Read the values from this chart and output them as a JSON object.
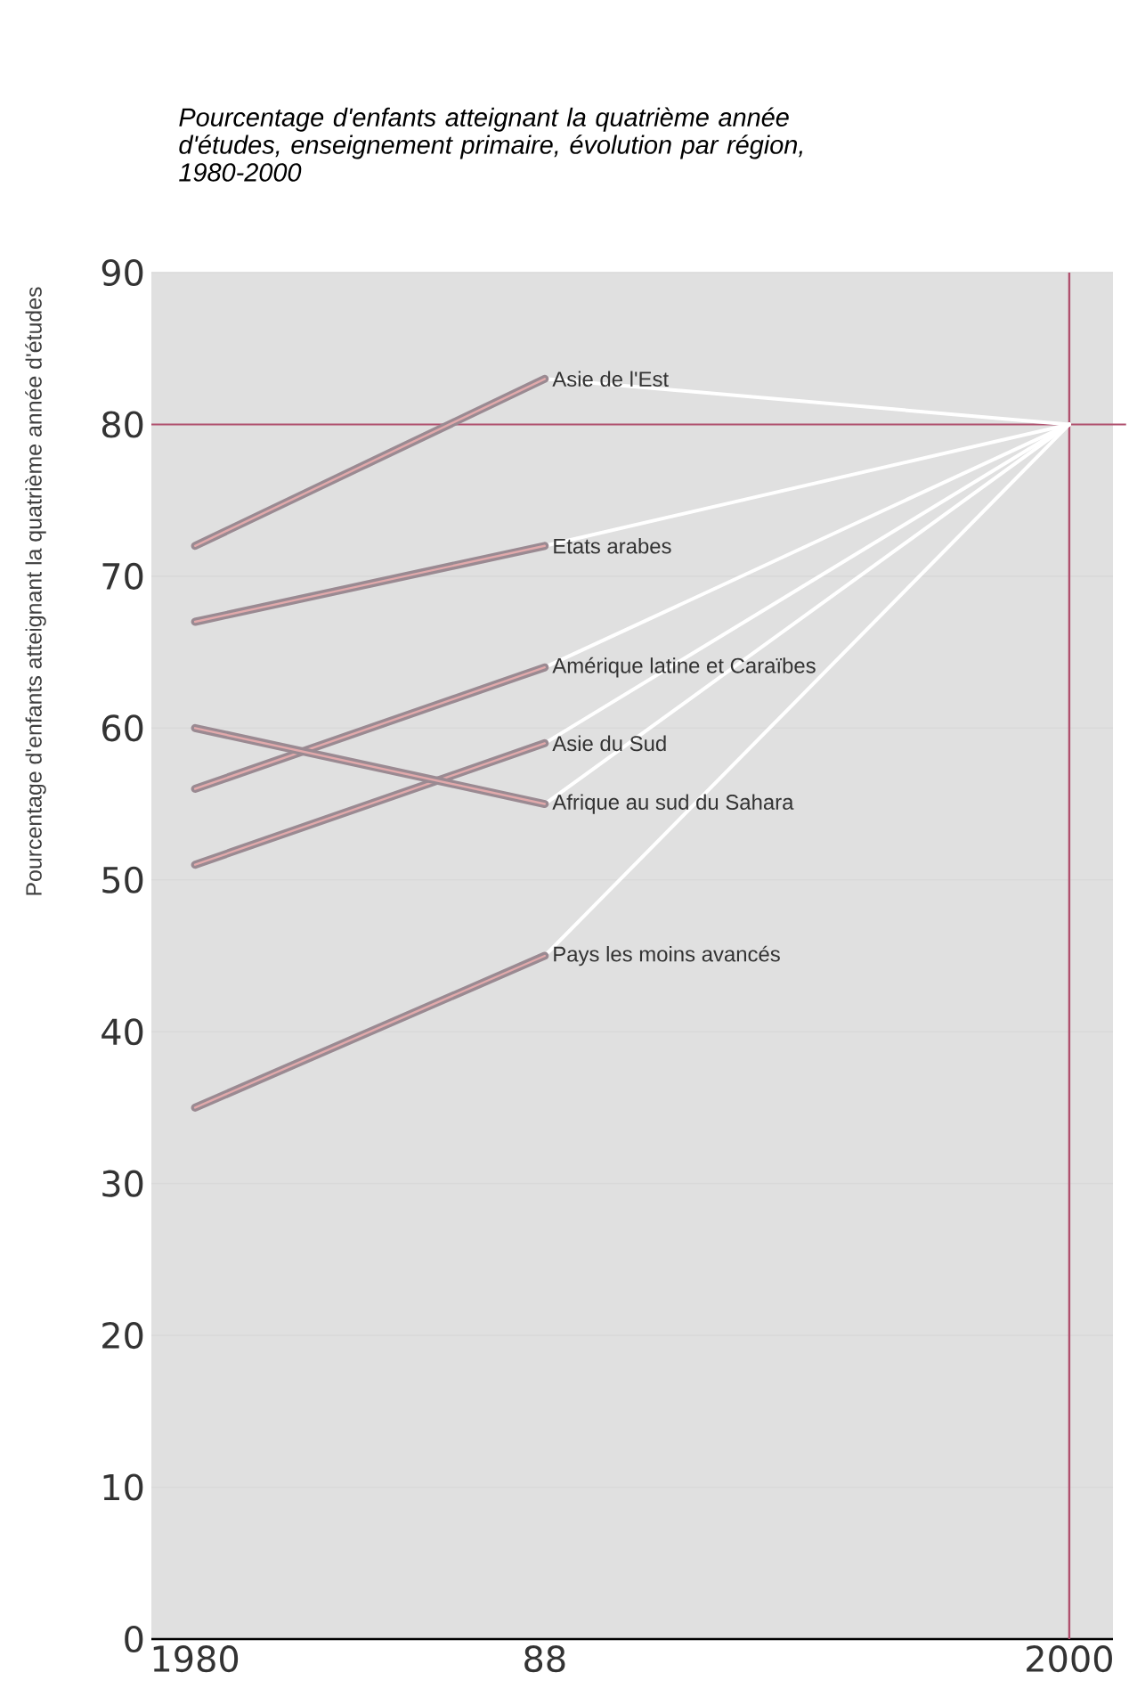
{
  "chart_data": {
    "type": "line",
    "title": "Pourcentage d'enfants atteignant la quatrième année d'études, enseignement primaire, évolution par région, 1980-2000",
    "ylabel": "Pourcentage d'enfants atteignant la quatrième année d'études",
    "x": [
      1980,
      1988,
      2000
    ],
    "xlim": [
      1979,
      2001
    ],
    "xticks": [
      1980,
      {
        "value": 1988,
        "label": "88"
      },
      2000
    ],
    "ylim": [
      0,
      90
    ],
    "yticks": [
      0,
      10,
      20,
      30,
      40,
      50,
      60,
      70,
      80,
      90
    ],
    "grid": "y",
    "series": [
      {
        "color": "#ffffff",
        "values": [
          null,
          83,
          80
        ]
      },
      {
        "color": "#ffffff",
        "values": [
          null,
          72,
          80
        ]
      },
      {
        "color": "#ffffff",
        "values": [
          null,
          64,
          80
        ]
      },
      {
        "color": "#ffffff",
        "values": [
          null,
          59,
          80
        ]
      },
      {
        "color": "#ffffff",
        "values": [
          null,
          55,
          80
        ]
      },
      {
        "color": "#ffffff",
        "values": [
          null,
          45,
          80
        ]
      },
      {
        "name": "Asie de l'Est",
        "color": "#9a8a92",
        "values": [
          72,
          83,
          null
        ]
      },
      {
        "name": "Etats arabes",
        "color": "#9a8a92",
        "values": [
          67,
          72,
          null
        ]
      },
      {
        "name": "Amérique latine et Caraïbes",
        "color": "#9a8a92",
        "values": [
          56,
          64,
          null
        ]
      },
      {
        "name": "Asie du Sud",
        "color": "#9a8a92",
        "values": [
          51,
          59,
          null
        ]
      },
      {
        "name": "Afrique au sud du Sahara",
        "color": "#9a8a92",
        "values": [
          60,
          55,
          null
        ]
      },
      {
        "name": "Pays les moins avancés",
        "color": "#9a8a92",
        "values": [
          35,
          45,
          null
        ]
      }
    ],
    "ref_lines": [
      {
        "axis": "y",
        "value": 80,
        "color": "#b0506e"
      },
      {
        "axis": "x",
        "value": 2000,
        "color": "#b0506e"
      }
    ]
  }
}
